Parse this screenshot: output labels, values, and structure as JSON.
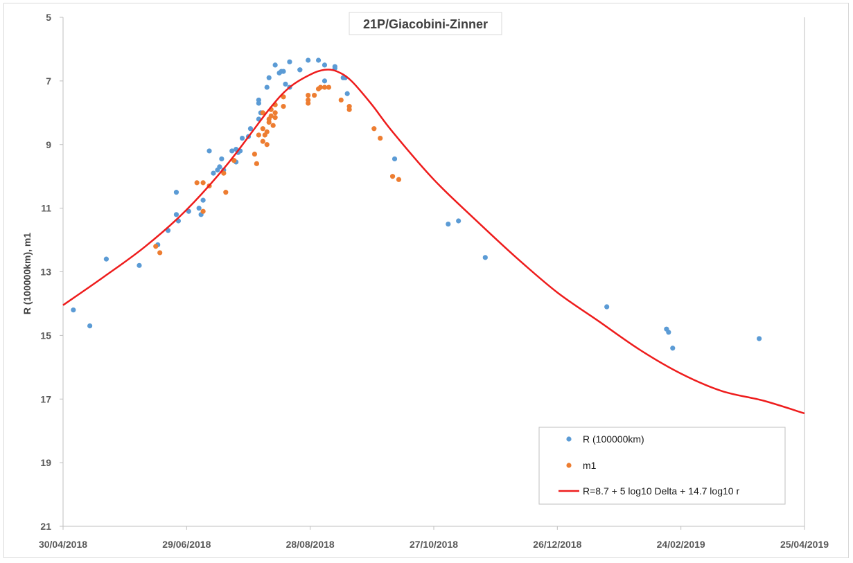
{
  "chart_data": {
    "type": "scatter",
    "title": "21P/Giacobini-Zinner",
    "xlabel": "",
    "ylabel": "R (100000km), m1",
    "x_axis": {
      "type": "date",
      "min": "2018-04-30",
      "max": "2019-04-25",
      "ticks": [
        "30/04/2018",
        "29/06/2018",
        "28/08/2018",
        "27/10/2018",
        "26/12/2018",
        "24/02/2019",
        "25/04/2019"
      ]
    },
    "y_axis": {
      "reversed": true,
      "min": 5,
      "max": 21,
      "ticks": [
        "5",
        "7",
        "9",
        "11",
        "13",
        "15",
        "17",
        "19",
        "21"
      ]
    },
    "grid": false,
    "legend_position": "bottom-right",
    "series": [
      {
        "name": "R (100000km)",
        "type": "scatter",
        "color": "#5b9bd5",
        "points": [
          [
            "2018-05-05",
            14.2
          ],
          [
            "2018-05-13",
            14.7
          ],
          [
            "2018-05-21",
            12.6
          ],
          [
            "2018-06-06",
            12.8
          ],
          [
            "2018-06-15",
            12.15
          ],
          [
            "2018-06-20",
            11.7
          ],
          [
            "2018-06-24",
            10.5
          ],
          [
            "2018-06-24",
            11.2
          ],
          [
            "2018-06-25",
            11.4
          ],
          [
            "2018-06-30",
            11.1
          ],
          [
            "2018-07-05",
            11.0
          ],
          [
            "2018-07-06",
            11.2
          ],
          [
            "2018-07-07",
            10.75
          ],
          [
            "2018-07-10",
            9.2
          ],
          [
            "2018-07-12",
            9.9
          ],
          [
            "2018-07-14",
            9.8
          ],
          [
            "2018-07-15",
            9.7
          ],
          [
            "2018-07-16",
            9.45
          ],
          [
            "2018-07-17",
            9.8
          ],
          [
            "2018-07-21",
            9.2
          ],
          [
            "2018-07-22",
            9.5
          ],
          [
            "2018-07-23",
            9.55
          ],
          [
            "2018-07-23",
            9.15
          ],
          [
            "2018-07-24",
            9.25
          ],
          [
            "2018-07-25",
            9.2
          ],
          [
            "2018-07-26",
            8.8
          ],
          [
            "2018-07-29",
            8.75
          ],
          [
            "2018-07-30",
            8.5
          ],
          [
            "2018-08-03",
            7.6
          ],
          [
            "2018-08-03",
            7.7
          ],
          [
            "2018-08-03",
            8.2
          ],
          [
            "2018-08-04",
            8.0
          ],
          [
            "2018-08-07",
            7.2
          ],
          [
            "2018-08-08",
            6.9
          ],
          [
            "2018-08-11",
            6.5
          ],
          [
            "2018-08-13",
            6.75
          ],
          [
            "2018-08-14",
            6.7
          ],
          [
            "2018-08-15",
            6.7
          ],
          [
            "2018-08-16",
            7.1
          ],
          [
            "2018-08-18",
            6.4
          ],
          [
            "2018-08-18",
            7.2
          ],
          [
            "2018-08-23",
            6.65
          ],
          [
            "2018-08-23",
            6.65
          ],
          [
            "2018-08-27",
            6.35
          ],
          [
            "2018-09-01",
            6.35
          ],
          [
            "2018-09-04",
            6.5
          ],
          [
            "2018-09-04",
            7.0
          ],
          [
            "2018-09-09",
            6.55
          ],
          [
            "2018-09-09",
            6.6
          ],
          [
            "2018-09-13",
            6.9
          ],
          [
            "2018-09-14",
            6.9
          ],
          [
            "2018-09-15",
            7.4
          ],
          [
            "2018-10-08",
            9.45
          ],
          [
            "2018-11-03",
            11.5
          ],
          [
            "2018-11-08",
            11.4
          ],
          [
            "2018-11-21",
            12.55
          ],
          [
            "2019-01-19",
            14.1
          ],
          [
            "2019-02-17",
            14.8
          ],
          [
            "2019-02-18",
            14.9
          ],
          [
            "2019-02-20",
            15.4
          ],
          [
            "2019-04-03",
            15.1
          ]
        ]
      },
      {
        "name": "m1",
        "type": "scatter",
        "color": "#ed7d31",
        "points": [
          [
            "2018-06-14",
            12.2
          ],
          [
            "2018-06-16",
            12.4
          ],
          [
            "2018-07-04",
            10.2
          ],
          [
            "2018-07-07",
            10.2
          ],
          [
            "2018-07-07",
            11.1
          ],
          [
            "2018-07-10",
            10.3
          ],
          [
            "2018-07-17",
            9.9
          ],
          [
            "2018-07-18",
            10.5
          ],
          [
            "2018-07-22",
            9.5
          ],
          [
            "2018-08-01",
            9.3
          ],
          [
            "2018-08-02",
            9.6
          ],
          [
            "2018-08-03",
            8.7
          ],
          [
            "2018-08-05",
            8.5
          ],
          [
            "2018-08-05",
            8.0
          ],
          [
            "2018-08-05",
            8.9
          ],
          [
            "2018-08-06",
            8.7
          ],
          [
            "2018-08-07",
            8.6
          ],
          [
            "2018-08-07",
            9.0
          ],
          [
            "2018-08-08",
            8.2
          ],
          [
            "2018-08-08",
            8.3
          ],
          [
            "2018-08-09",
            7.9
          ],
          [
            "2018-08-09",
            8.1
          ],
          [
            "2018-08-10",
            8.4
          ],
          [
            "2018-08-11",
            8.0
          ],
          [
            "2018-08-11",
            7.75
          ],
          [
            "2018-08-11",
            8.15
          ],
          [
            "2018-08-15",
            7.5
          ],
          [
            "2018-08-15",
            7.8
          ],
          [
            "2018-08-27",
            7.45
          ],
          [
            "2018-08-27",
            7.6
          ],
          [
            "2018-08-27",
            7.7
          ],
          [
            "2018-08-30",
            7.45
          ],
          [
            "2018-09-01",
            7.25
          ],
          [
            "2018-09-02",
            7.2
          ],
          [
            "2018-09-04",
            7.2
          ],
          [
            "2018-09-06",
            7.2
          ],
          [
            "2018-09-12",
            7.6
          ],
          [
            "2018-09-16",
            7.8
          ],
          [
            "2018-09-16",
            7.9
          ],
          [
            "2018-09-28",
            8.5
          ],
          [
            "2018-10-01",
            8.8
          ],
          [
            "2018-10-07",
            10.0
          ],
          [
            "2018-10-10",
            10.1
          ]
        ]
      },
      {
        "name": "R=8.7 + 5 log10 Delta + 14.7 log10 r",
        "type": "line",
        "color": "#ee1c1c",
        "points": [
          [
            "2018-04-30",
            14.05
          ],
          [
            "2018-05-20",
            13.15
          ],
          [
            "2018-06-09",
            12.2
          ],
          [
            "2018-06-29",
            11.05
          ],
          [
            "2018-07-19",
            9.6
          ],
          [
            "2018-08-08",
            7.9
          ],
          [
            "2018-08-18",
            7.2
          ],
          [
            "2018-08-28",
            6.8
          ],
          [
            "2018-09-04",
            6.65
          ],
          [
            "2018-09-10",
            6.7
          ],
          [
            "2018-09-17",
            7.0
          ],
          [
            "2018-09-27",
            7.75
          ],
          [
            "2018-10-07",
            8.6
          ],
          [
            "2018-10-27",
            10.1
          ],
          [
            "2018-11-16",
            11.35
          ],
          [
            "2018-12-06",
            12.55
          ],
          [
            "2018-12-26",
            13.65
          ],
          [
            "2019-01-15",
            14.55
          ],
          [
            "2019-02-04",
            15.45
          ],
          [
            "2019-02-24",
            16.2
          ],
          [
            "2019-03-16",
            16.75
          ],
          [
            "2019-04-05",
            17.05
          ],
          [
            "2019-04-25",
            17.45
          ]
        ]
      }
    ]
  }
}
